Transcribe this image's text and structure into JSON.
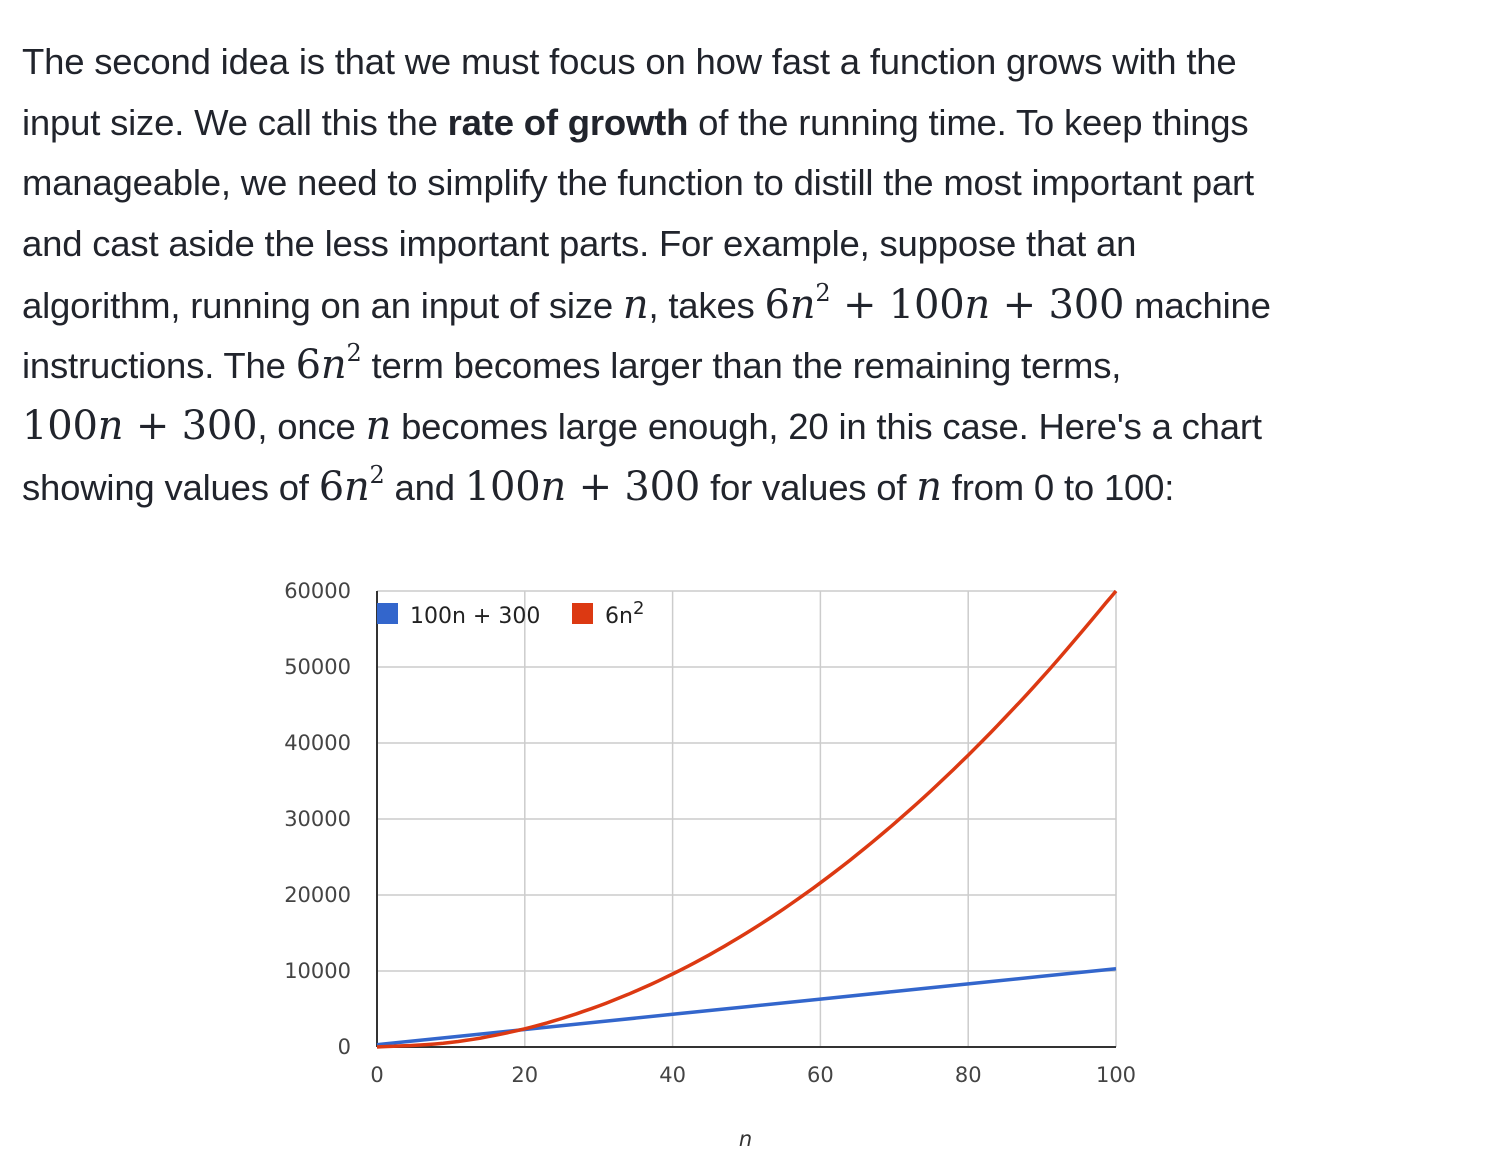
{
  "paragraph": {
    "l1": "The second idea is that we must focus on how fast a function grows with the",
    "l2a": "input size. We call this the ",
    "l2b": "rate of growth",
    "l2c": " of the running time. To keep things",
    "l3": "manageable, we need to simplify the function to distill the most important part",
    "l4": "and cast aside the less important parts. For example, suppose that an",
    "l5a": "algorithm, running on an input of size ",
    "l5b": ", takes ",
    "l5c": " machine",
    "l6a": "instructions. The ",
    "l6b": " term becomes larger than the remaining terms,",
    "l7a": ", once ",
    "l7b": " becomes large enough, 20 in this case. Here's a chart",
    "l8a": "showing values of ",
    "l8b": " and ",
    "l8c": " for values of ",
    "l8d": " from 0 to 100:"
  },
  "math": {
    "n": "n",
    "six": "6",
    "two": "2",
    "plus100": " + 100",
    "plus300": " + 300",
    "hundred": "100"
  },
  "chart_data": {
    "type": "line",
    "xlabel": "n",
    "ylabel": "",
    "xlim": [
      0,
      100
    ],
    "ylim": [
      0,
      60000
    ],
    "x_ticks": [
      "0",
      "20",
      "40",
      "60",
      "80",
      "100"
    ],
    "y_ticks": [
      "0",
      "10000",
      "20000",
      "30000",
      "40000",
      "50000",
      "60000"
    ],
    "grid": true,
    "legend_position": "top-left",
    "series": [
      {
        "name": "100n + 300",
        "color": "#3366cc",
        "x": [
          0,
          10,
          20,
          30,
          40,
          50,
          60,
          70,
          80,
          90,
          100
        ],
        "y": [
          300,
          1300,
          2300,
          3300,
          4300,
          5300,
          6300,
          7300,
          8300,
          9300,
          10300
        ]
      },
      {
        "name": "6n",
        "name_superscript": "2",
        "color": "#dc3912",
        "x": [
          0,
          10,
          20,
          30,
          40,
          50,
          60,
          70,
          80,
          90,
          100
        ],
        "y": [
          0,
          600,
          2400,
          5400,
          9600,
          15000,
          21600,
          29400,
          38400,
          48600,
          60000
        ]
      }
    ]
  }
}
